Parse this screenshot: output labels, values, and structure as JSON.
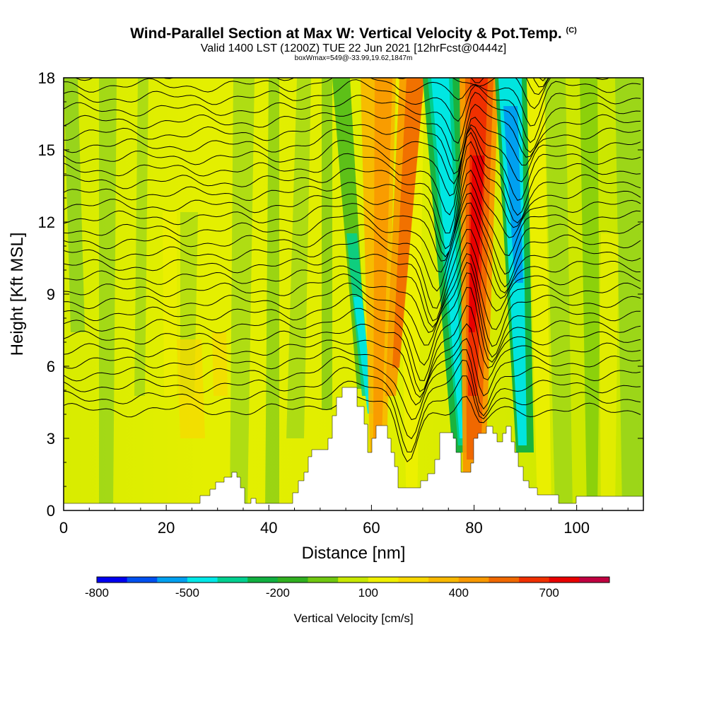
{
  "title": {
    "main": "Wind-Parallel Section at Max W: Vertical Velocity & Pot.Temp.",
    "copyright": "(C)",
    "valid_line": "Valid 1400 LST (1200Z) TUE 22 Jun 2021 [12hrFcst@0444z]",
    "box_line": "boxWmax=549@-33.99,19.62,1847m"
  },
  "chart_data": {
    "type": "heatmap",
    "xlabel": "Distance [nm]",
    "ylabel": "Height [Kft MSL]",
    "xlim": [
      0,
      113
    ],
    "ylim": [
      0,
      18
    ],
    "x_ticks": [
      "0",
      "20",
      "40",
      "60",
      "80",
      "100"
    ],
    "y_ticks": [
      "0",
      "3",
      "6",
      "9",
      "12",
      "15",
      "18"
    ],
    "colorbar": {
      "label": "Vertical Velocity [cm/s]",
      "tick_labels": [
        "-800",
        "-500",
        "-200",
        "100",
        "400",
        "700"
      ],
      "colors": [
        "#0000f0",
        "#0050f0",
        "#00a0f0",
        "#00e8e8",
        "#00d090",
        "#10b040",
        "#30b020",
        "#70c810",
        "#c8e800",
        "#f0f000",
        "#f8d800",
        "#f8b800",
        "#f89800",
        "#f06800",
        "#f03000",
        "#e80000",
        "#c00040"
      ]
    },
    "features": {
      "updraft_max_cm_s": 549,
      "strong_updraft_x_nm": 80,
      "downdraft_bands_x_nm": [
        73,
        87
      ],
      "terrain_peaks_kft": [
        {
          "x_nm": 31,
          "height_kft": 1.3
        },
        {
          "x_nm": 56,
          "height_kft": 5.1
        },
        {
          "x_nm": 62,
          "height_kft": 3.5
        },
        {
          "x_nm": 75,
          "height_kft": 3.2
        },
        {
          "x_nm": 82,
          "height_kft": 3.5
        },
        {
          "x_nm": 88,
          "height_kft": 3.5
        }
      ]
    }
  }
}
